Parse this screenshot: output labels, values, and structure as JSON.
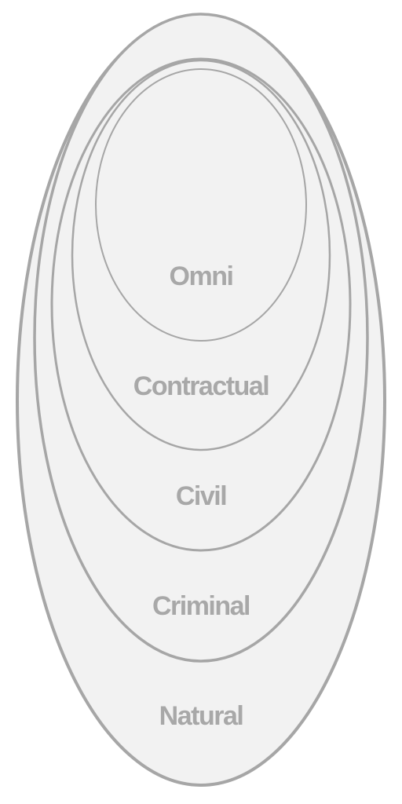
{
  "diagram": {
    "type": "nested-ellipses",
    "colors": {
      "fill": "#f2f2f2",
      "stroke": "#a6a6a6",
      "label": "#a8a8a8",
      "background": "#ffffff"
    },
    "layers": [
      {
        "id": "natural",
        "label": "Natural"
      },
      {
        "id": "criminal",
        "label": "Criminal"
      },
      {
        "id": "civil",
        "label": "Civil"
      },
      {
        "id": "contractual",
        "label": "Contractual"
      },
      {
        "id": "omni",
        "label": "Omni"
      }
    ]
  }
}
